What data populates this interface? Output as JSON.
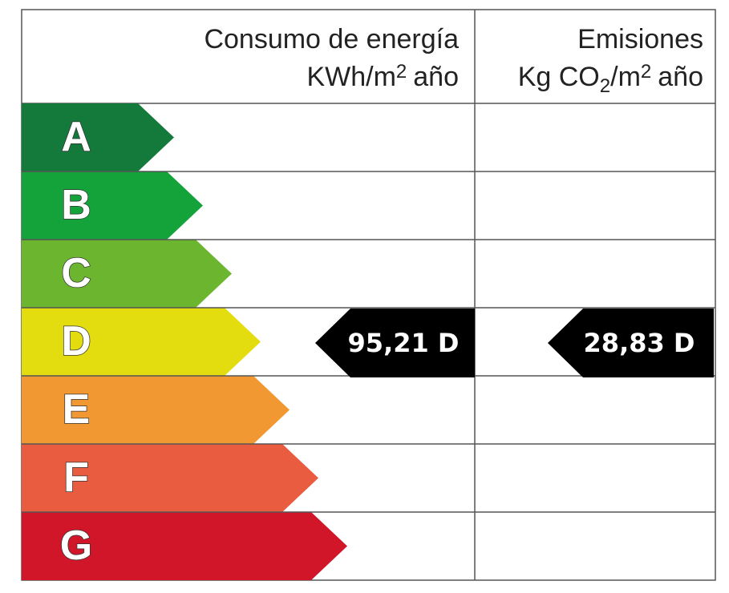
{
  "header": {
    "energy": {
      "title": "Consumo de energía",
      "unit": [
        "KWh/m",
        "2",
        "año"
      ]
    },
    "emissions": {
      "title": "Emisiones",
      "unit": [
        "Kg CO",
        "2",
        "/m",
        "2",
        "año"
      ]
    }
  },
  "classes": [
    {
      "letter": "A",
      "color": "#137a3c"
    },
    {
      "letter": "B",
      "color": "#14a33b"
    },
    {
      "letter": "C",
      "color": "#6cb52f"
    },
    {
      "letter": "D",
      "color": "#e3dc0f"
    },
    {
      "letter": "E",
      "color": "#f29832"
    },
    {
      "letter": "F",
      "color": "#e95c3f"
    },
    {
      "letter": "G",
      "color": "#d2162a"
    }
  ],
  "ratings": {
    "energy": "95,21 D",
    "emissions": "28,83 D"
  }
}
